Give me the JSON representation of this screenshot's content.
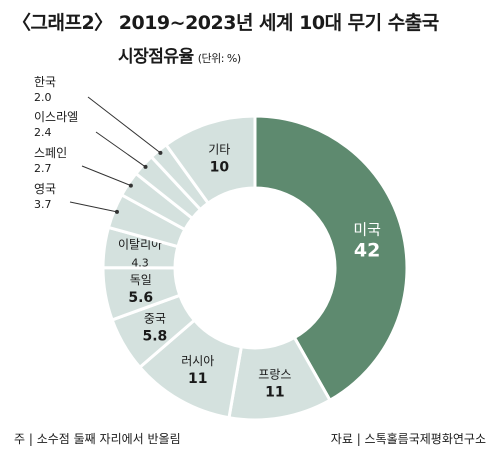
{
  "header": {
    "title": "〈그래프2〉 2019~2023년 세계 10대 무기 수출국",
    "subtitle": "시장점유율",
    "unit": "(단위: %)"
  },
  "chart_data": {
    "type": "pie",
    "style": "donut",
    "slices": [
      {
        "label": "미국",
        "value": 42,
        "value_text": "42",
        "color": "#5e8a6f",
        "label_position": "inside"
      },
      {
        "label": "프랑스",
        "value": 11,
        "value_text": "11",
        "color": "#d4e1de",
        "label_position": "inside"
      },
      {
        "label": "러시아",
        "value": 11,
        "value_text": "11",
        "color": "#d4e1de",
        "label_position": "inside"
      },
      {
        "label": "중국",
        "value": 5.8,
        "value_text": "5.8",
        "color": "#d4e1de",
        "label_position": "inside"
      },
      {
        "label": "독일",
        "value": 5.6,
        "value_text": "5.6",
        "color": "#d4e1de",
        "label_position": "inside"
      },
      {
        "label": "이탈리아",
        "value": 4.3,
        "value_text": "4.3",
        "color": "#d4e1de",
        "label_position": "inside"
      },
      {
        "label": "영국",
        "value": 3.7,
        "value_text": "3.7",
        "color": "#d4e1de",
        "label_position": "outside"
      },
      {
        "label": "스페인",
        "value": 2.7,
        "value_text": "2.7",
        "color": "#d4e1de",
        "label_position": "outside"
      },
      {
        "label": "이스라엘",
        "value": 2.4,
        "value_text": "2.4",
        "color": "#d4e1de",
        "label_position": "outside"
      },
      {
        "label": "한국",
        "value": 2.0,
        "value_text": "2.0",
        "color": "#d4e1de",
        "label_position": "outside"
      },
      {
        "label": "기타",
        "value": 10,
        "value_text": "10",
        "color": "#d4e1de",
        "label_position": "inside"
      }
    ]
  },
  "footer": {
    "note": "주 | 소수점 둘째 자리에서 반올림",
    "source": "자료 | 스톡홀름국제평화연구소"
  }
}
